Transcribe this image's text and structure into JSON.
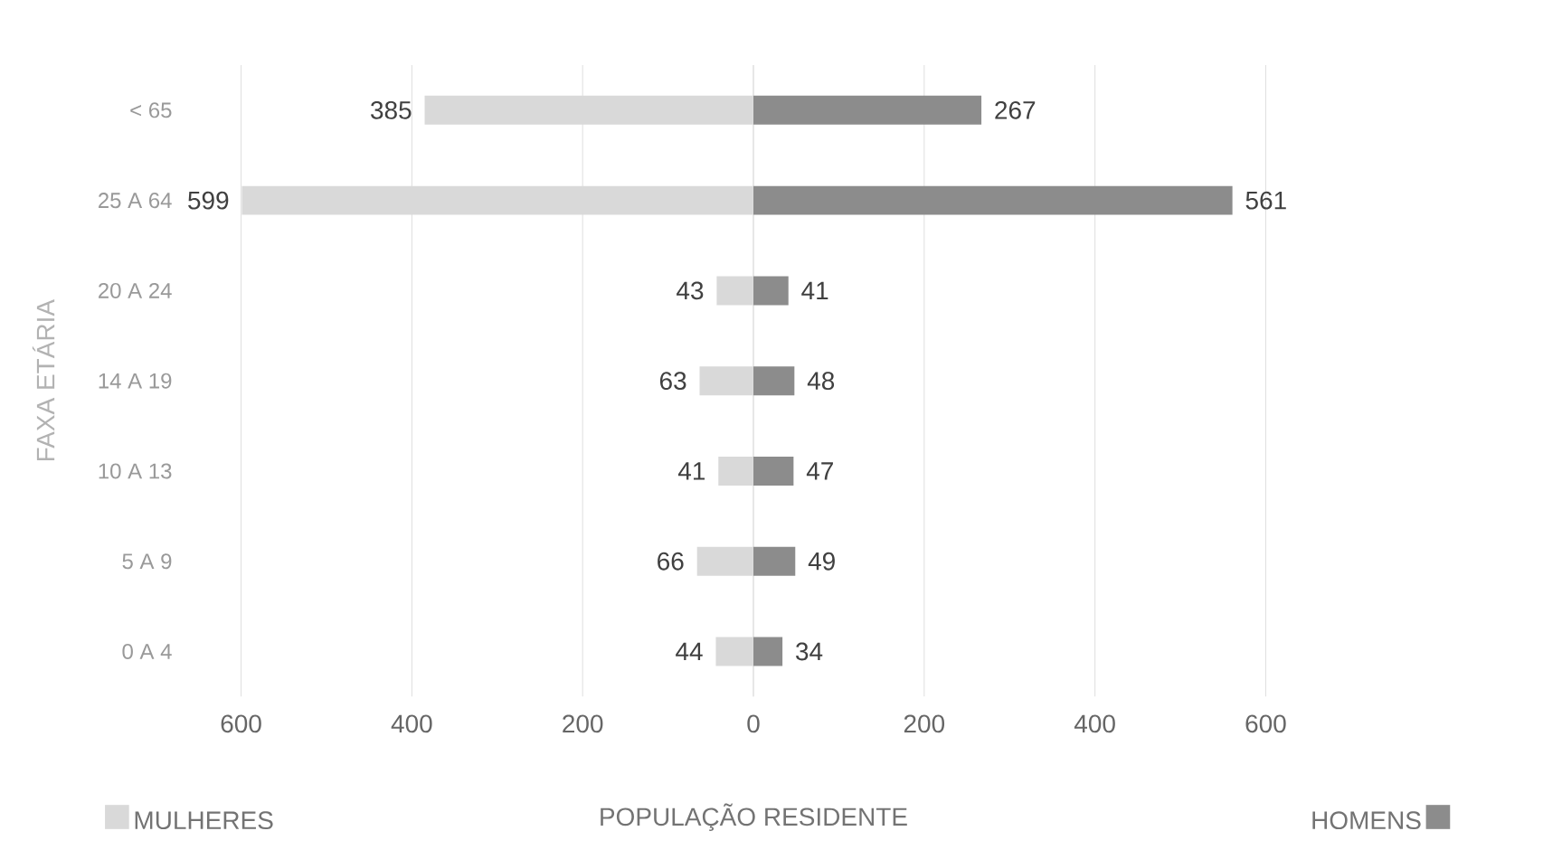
{
  "chart_data": [
    {
      "type": "bar",
      "orientation": "horizontal",
      "xlabel": "POPULAÇÃO RESIDENTE",
      "ylabel": "FAXA ETÁRIA",
      "categories": [
        "< 65",
        "25 A 64",
        "20 A 24",
        "14 A 19",
        "10 A 13",
        "5 A 9",
        "0 A 4"
      ],
      "series": [
        {
          "name": "MULHERES",
          "color": "#d9d9d9",
          "values": [
            385,
            599,
            43,
            63,
            41,
            66,
            44
          ]
        }
      ],
      "data_labels": true,
      "xlim": [
        600,
        0
      ],
      "xticks": [
        600,
        400,
        200,
        {
          "value": 0,
          "label": null
        }
      ],
      "grid": "x",
      "legend": "bottom left"
    },
    {
      "type": "bar",
      "orientation": "horizontal",
      "series": [
        {
          "name": "HOMENS",
          "color": "#8c8c8c",
          "values": [
            267,
            561,
            41,
            48,
            47,
            49,
            34
          ]
        }
      ],
      "data_labels": true,
      "xlim": [
        0,
        600
      ],
      "xticks": [
        0,
        200,
        400,
        600
      ],
      "grid": "x",
      "legend": "bottom right",
      "tick_labels": "x"
    }
  ]
}
